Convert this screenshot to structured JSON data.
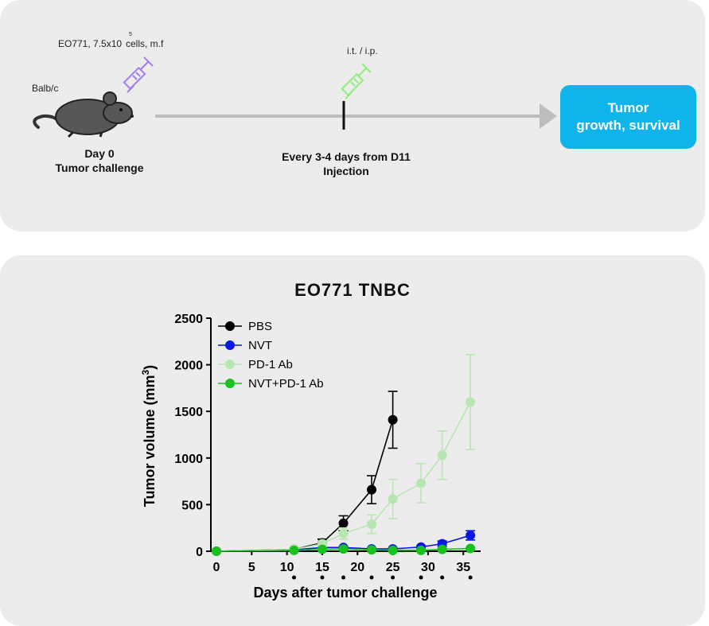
{
  "schematic": {
    "cell_line_label": "EO771, 7.5x10",
    "exponent": "5",
    "cells_label": "cells, m.f",
    "mouse_strain": "Balb/c",
    "day0_line1": "Day  0",
    "day0_line2": "Tumor challenge",
    "route_label": "i.t. / i.p.",
    "schedule_line1": "Every 3-4 days from D11",
    "schedule_line2": "Injection",
    "outcome_line1": "Tumor",
    "outcome_line2": "growth, survival"
  },
  "colors": {
    "pbs": "#000000",
    "nvt": "#0b17e6",
    "pd1": "#b8e6b2",
    "combo": "#18c21e",
    "outcome_box": "#0fb4eb",
    "syringe_day0": "#a57cf3",
    "syringe_treat": "#8fef7c"
  },
  "chart_data": {
    "type": "line",
    "title": "EO771  TNBC",
    "xlabel": "Days after tumor challenge",
    "ylabel": "Tumor volume (mm3)",
    "xlim": [
      0,
      37
    ],
    "ylim": [
      0,
      2500
    ],
    "xticks": [
      0,
      5,
      10,
      15,
      20,
      25,
      30,
      35
    ],
    "yticks": [
      0,
      500,
      1000,
      1500,
      2000,
      2500
    ],
    "treatment_days": [
      11,
      15,
      18,
      22,
      25,
      29,
      32,
      36
    ],
    "legend_position": "top-left",
    "series": [
      {
        "name": "PBS",
        "color": "#000000",
        "x": [
          0,
          11,
          15,
          18,
          22,
          25
        ],
        "y": [
          0,
          20,
          90,
          300,
          660,
          1410
        ],
        "err": [
          0,
          10,
          40,
          80,
          150,
          305
        ]
      },
      {
        "name": "NVT",
        "color": "#0b17e6",
        "x": [
          0,
          11,
          15,
          18,
          22,
          25,
          29,
          32,
          36
        ],
        "y": [
          0,
          15,
          40,
          40,
          25,
          25,
          45,
          80,
          170
        ],
        "err": [
          0,
          5,
          10,
          10,
          8,
          8,
          15,
          30,
          50
        ]
      },
      {
        "name": "PD-1 Ab",
        "color": "#b8e6b2",
        "x": [
          0,
          11,
          15,
          18,
          22,
          25,
          29,
          32,
          36
        ],
        "y": [
          0,
          20,
          80,
          190,
          290,
          560,
          730,
          1030,
          1600
        ],
        "err": [
          0,
          10,
          30,
          60,
          100,
          210,
          210,
          260,
          510
        ]
      },
      {
        "name": "NVT+PD-1 Ab",
        "color": "#18c21e",
        "x": [
          0,
          11,
          15,
          18,
          22,
          25,
          29,
          32,
          36
        ],
        "y": [
          0,
          10,
          20,
          25,
          15,
          10,
          10,
          20,
          30
        ],
        "err": [
          0,
          5,
          5,
          5,
          5,
          5,
          5,
          5,
          8
        ]
      }
    ]
  }
}
